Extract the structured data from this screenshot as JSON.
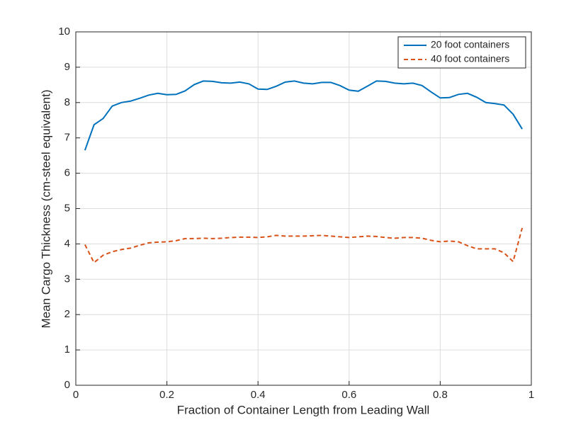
{
  "chart_data": {
    "type": "line",
    "xlabel": "Fraction of Container Length from Leading Wall",
    "ylabel": "Mean Cargo Thickness (cm-steel equivalent)",
    "x": [
      0.02,
      0.04,
      0.06,
      0.08,
      0.1,
      0.12,
      0.14,
      0.16,
      0.18,
      0.2,
      0.22,
      0.24,
      0.26,
      0.28,
      0.3,
      0.32,
      0.34,
      0.36,
      0.38,
      0.4,
      0.42,
      0.44,
      0.46,
      0.48,
      0.5,
      0.52,
      0.54,
      0.56,
      0.58,
      0.6,
      0.62,
      0.64,
      0.66,
      0.68,
      0.7,
      0.72,
      0.74,
      0.76,
      0.78,
      0.8,
      0.82,
      0.84,
      0.86,
      0.88,
      0.9,
      0.92,
      0.94,
      0.96,
      0.98
    ],
    "series": [
      {
        "name": "20 foot containers",
        "color": "#0072bd",
        "line_style": "solid",
        "values": [
          6.65,
          7.37,
          7.55,
          7.9,
          8.0,
          8.04,
          8.12,
          8.21,
          8.26,
          8.22,
          8.23,
          8.33,
          8.51,
          8.61,
          8.6,
          8.56,
          8.55,
          8.58,
          8.53,
          8.38,
          8.37,
          8.46,
          8.58,
          8.61,
          8.55,
          8.53,
          8.57,
          8.57,
          8.48,
          8.35,
          8.32,
          8.46,
          8.61,
          8.6,
          8.55,
          8.53,
          8.55,
          8.48,
          8.3,
          8.13,
          8.14,
          8.23,
          8.26,
          8.15,
          8.0,
          7.97,
          7.93,
          7.67,
          7.25
        ]
      },
      {
        "name": "40 foot containers",
        "color": "#d95319",
        "line_style": "dashed",
        "values": [
          3.98,
          3.47,
          3.68,
          3.78,
          3.84,
          3.88,
          3.96,
          4.03,
          4.05,
          4.06,
          4.09,
          4.15,
          4.15,
          4.16,
          4.15,
          4.16,
          4.18,
          4.19,
          4.19,
          4.18,
          4.2,
          4.24,
          4.22,
          4.22,
          4.22,
          4.23,
          4.24,
          4.22,
          4.2,
          4.18,
          4.2,
          4.22,
          4.21,
          4.18,
          4.16,
          4.18,
          4.18,
          4.16,
          4.1,
          4.06,
          4.08,
          4.06,
          3.95,
          3.86,
          3.86,
          3.86,
          3.75,
          3.5,
          4.45
        ]
      }
    ],
    "xlim": [
      0,
      1
    ],
    "xticks": [
      0,
      0.2,
      0.4,
      0.6,
      0.8,
      1
    ],
    "ylim": [
      0,
      10
    ],
    "yticks": [
      0,
      1,
      2,
      3,
      4,
      5,
      6,
      7,
      8,
      9,
      10
    ],
    "grid": true,
    "legend_position": "upper-right"
  }
}
